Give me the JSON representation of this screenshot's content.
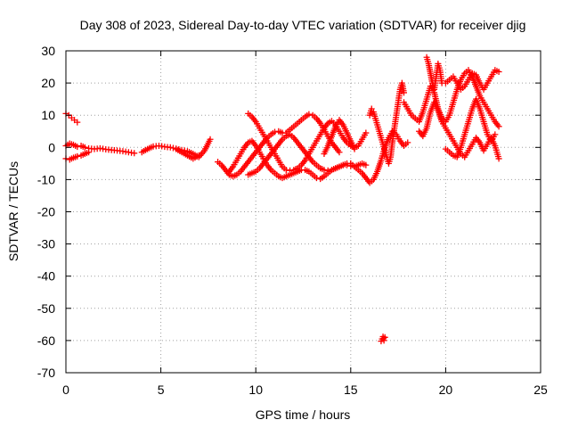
{
  "chart_data": {
    "type": "scatter",
    "title": "Day 308 of 2023, Sidereal Day-to-day VTEC variation (SDTVAR) for receiver djig",
    "xlabel": "GPS time / hours",
    "ylabel": "SDTVAR / TECUs",
    "xlim": [
      0,
      25
    ],
    "ylim": [
      -70,
      30
    ],
    "xticks": [
      0,
      5,
      10,
      15,
      20,
      25
    ],
    "yticks": [
      -70,
      -60,
      -50,
      -40,
      -30,
      -20,
      -10,
      0,
      10,
      20,
      30
    ],
    "xtick_labels": [
      "0",
      "5",
      "10",
      "15",
      "20",
      "25"
    ],
    "ytick_labels": [
      "-70",
      "-60",
      "-50",
      "-40",
      "-30",
      "-20",
      "-10",
      "0",
      "10",
      "20",
      "30"
    ],
    "grid": true,
    "marker": "+",
    "color": "#ff0000",
    "series": [
      {
        "name": "s1",
        "x": [
          0.0,
          0.15,
          0.3,
          0.45,
          0.6
        ],
        "y": [
          10.5,
          10.0,
          9.2,
          8.5,
          7.8
        ]
      },
      {
        "name": "s2",
        "x": [
          0.0,
          0.2,
          0.4,
          0.6,
          0.8,
          1.0,
          1.2,
          1.5,
          1.8,
          2.1,
          2.4,
          2.7,
          3.0,
          3.3,
          3.6
        ],
        "y": [
          0.5,
          1.2,
          0.8,
          0.2,
          0.5,
          0.0,
          -0.3,
          -0.5,
          -0.3,
          -0.6,
          -0.8,
          -1.0,
          -1.2,
          -1.5,
          -1.8
        ]
      },
      {
        "name": "s3",
        "x": [
          0.0,
          0.2,
          0.4,
          0.6,
          0.8,
          1.0,
          1.2
        ],
        "y": [
          -3.5,
          -3.8,
          -3.2,
          -2.8,
          -2.5,
          -2.0,
          -1.5
        ]
      },
      {
        "name": "s4",
        "x": [
          4.0,
          4.3,
          4.6,
          4.9,
          5.2,
          5.5,
          5.8,
          6.1,
          6.4,
          6.7,
          7.0,
          7.3,
          7.6
        ],
        "y": [
          -1.5,
          -0.5,
          0.3,
          0.5,
          0.2,
          0.0,
          -0.4,
          -0.8,
          -1.2,
          -2.0,
          -3.0,
          -1.0,
          2.5
        ]
      },
      {
        "name": "s5",
        "x": [
          5.8,
          6.1,
          6.4,
          6.7,
          7.0
        ],
        "y": [
          -0.5,
          -1.5,
          -2.5,
          -3.5,
          -2.5
        ]
      },
      {
        "name": "s6",
        "x": [
          8.0,
          8.2,
          8.4,
          8.6,
          8.8,
          9.0,
          9.2,
          9.4,
          9.6,
          9.8,
          10.0,
          10.2,
          10.4,
          10.6,
          10.8,
          11.0,
          11.2,
          11.4,
          11.6,
          11.8,
          12.0,
          12.2,
          12.4,
          12.6,
          12.8,
          13.0,
          13.2,
          13.4,
          13.6,
          13.8,
          14.0,
          14.2,
          14.4
        ],
        "y": [
          -4.5,
          -5.5,
          -7.0,
          -8.5,
          -9.0,
          -8.5,
          -7.5,
          -6.0,
          -4.5,
          -3.0,
          -1.5,
          0.0,
          1.5,
          3.0,
          4.0,
          4.8,
          5.0,
          4.5,
          4.5,
          5.5,
          6.5,
          7.5,
          8.5,
          9.5,
          10.3,
          10.0,
          9.0,
          7.5,
          5.5,
          3.5,
          1.5,
          0.0,
          -1.5
        ]
      },
      {
        "name": "s7",
        "x": [
          8.6,
          8.8,
          9.0,
          9.2,
          9.4,
          9.6,
          9.8,
          10.0,
          10.2,
          10.4,
          10.6,
          10.8,
          11.0,
          11.2,
          11.4,
          11.6,
          11.8,
          12.0,
          12.2,
          12.4,
          12.6,
          12.8,
          13.0,
          13.2,
          13.4,
          13.6,
          13.8,
          14.0,
          14.2,
          14.4,
          14.6,
          14.8,
          15.0,
          15.2,
          15.4,
          15.6,
          15.8
        ],
        "y": [
          -7.5,
          -6.0,
          -4.0,
          -2.0,
          0.0,
          1.5,
          2.0,
          0.5,
          -1.5,
          -3.5,
          -5.5,
          -7.0,
          -8.0,
          -9.0,
          -9.5,
          -9.0,
          -8.5,
          -8.0,
          -7.5,
          -7.0,
          -7.0,
          -7.5,
          -8.5,
          -9.5,
          -9.8,
          -9.0,
          -8.0,
          -7.0,
          -6.5,
          -6.0,
          -5.5,
          -5.5,
          -5.8,
          -6.0,
          -5.5,
          -5.0,
          -5.5
        ]
      },
      {
        "name": "s8",
        "x": [
          9.6,
          9.8,
          10.0,
          10.2,
          10.4,
          10.6,
          10.8,
          11.0,
          11.2,
          11.4,
          11.6,
          11.8,
          12.0,
          12.2,
          12.4,
          12.6,
          12.8,
          13.0,
          13.2,
          13.4,
          13.6,
          13.8,
          14.0,
          14.2,
          14.4,
          14.6,
          14.8,
          15.0,
          15.2,
          15.4,
          15.6,
          15.8
        ],
        "y": [
          10.5,
          9.5,
          8.0,
          6.0,
          4.0,
          2.0,
          0.0,
          -2.0,
          -4.0,
          -6.0,
          -7.0,
          -7.2,
          -7.0,
          -6.5,
          -5.5,
          -4.0,
          -2.0,
          0.0,
          2.0,
          4.0,
          6.0,
          7.5,
          8.2,
          7.0,
          5.0,
          3.0,
          1.5,
          0.5,
          0.0,
          0.5,
          2.5,
          4.5
        ]
      },
      {
        "name": "s9",
        "x": [
          9.6,
          9.8,
          10.0,
          10.2,
          10.4,
          10.6,
          10.8,
          11.0,
          11.2,
          11.4,
          11.6,
          11.8,
          12.0,
          12.2,
          12.4,
          12.6,
          12.8,
          13.0,
          13.2,
          13.4,
          13.6,
          13.8,
          14.0,
          14.2,
          14.4,
          14.6,
          14.8,
          15.0
        ],
        "y": [
          -8.5,
          -8.0,
          -7.5,
          -6.5,
          -5.0,
          -3.5,
          -2.0,
          -0.5,
          1.0,
          2.5,
          3.5,
          4.0,
          3.0,
          1.5,
          0.0,
          -1.5,
          -3.0,
          -4.5,
          -5.5,
          -6.5,
          -7.0,
          -7.2,
          -7.0,
          -6.5,
          -6.0,
          -5.5,
          -5.0,
          -5.0
        ]
      },
      {
        "name": "s10",
        "x": [
          13.6,
          13.8,
          14.0,
          14.2,
          14.4,
          14.6,
          14.8,
          15.0,
          15.2
        ],
        "y": [
          -2.0,
          0.5,
          3.5,
          6.5,
          8.5,
          7.0,
          4.5,
          2.0,
          -0.5
        ]
      },
      {
        "name": "s11",
        "x": [
          15.0,
          15.2,
          15.4,
          15.6,
          15.8,
          16.0,
          16.2,
          16.4,
          16.6,
          16.8,
          17.0,
          17.2,
          17.4,
          17.6,
          17.8,
          18.0
        ],
        "y": [
          -5.0,
          -6.0,
          -7.0,
          -8.0,
          -9.5,
          -11.0,
          -10.0,
          -7.5,
          -4.0,
          0.0,
          3.0,
          5.0,
          4.0,
          2.0,
          0.5,
          1.5
        ]
      },
      {
        "name": "s12",
        "x": [
          16.0,
          16.1,
          16.2,
          16.3,
          16.4,
          16.5,
          16.6,
          16.7,
          16.8,
          16.9,
          17.0,
          17.1,
          17.2,
          17.3,
          17.4,
          17.5,
          17.6,
          17.7,
          17.8
        ],
        "y": [
          10.0,
          12.0,
          11.0,
          9.0,
          7.0,
          5.0,
          3.0,
          1.0,
          -1.0,
          -3.0,
          -5.0,
          -3.0,
          2.0,
          6.0,
          10.0,
          14.0,
          18.0,
          20.0,
          17.0
        ]
      },
      {
        "name": "s13",
        "x": [
          16.6,
          16.65,
          16.7,
          16.75,
          16.8
        ],
        "y": [
          -60.2,
          -59.5,
          -58.8,
          -60.0,
          -59.0
        ]
      },
      {
        "name": "s14",
        "x": [
          17.8,
          18.0,
          18.2,
          18.4,
          18.6,
          18.8,
          19.0,
          19.2,
          19.4,
          19.6,
          19.8,
          20.0,
          20.2,
          20.4,
          20.6,
          20.8,
          21.0,
          21.2,
          21.4,
          21.6,
          21.8,
          22.0,
          22.2,
          22.4,
          22.6,
          22.8
        ],
        "y": [
          14.0,
          12.0,
          10.0,
          9.0,
          8.0,
          11.0,
          15.0,
          19.0,
          17.0,
          12.0,
          9.0,
          8.0,
          10.0,
          14.0,
          18.0,
          21.0,
          23.0,
          24.0,
          22.0,
          19.0,
          16.0,
          14.0,
          12.0,
          10.0,
          8.0,
          6.5
        ]
      },
      {
        "name": "s15",
        "x": [
          18.6,
          18.8,
          19.0,
          19.2,
          19.4,
          19.6,
          19.8,
          20.0,
          20.2,
          20.4,
          20.6,
          20.8,
          21.0,
          21.2,
          21.4,
          21.6,
          21.8,
          22.0,
          22.2,
          22.4,
          22.6,
          22.8
        ],
        "y": [
          5.0,
          3.5,
          6.0,
          11.0,
          14.0,
          11.5,
          8.0,
          6.0,
          4.0,
          2.0,
          0.0,
          -2.0,
          -3.0,
          -1.0,
          1.0,
          3.0,
          1.5,
          -1.0,
          1.0,
          3.0,
          0.5,
          -3.5
        ]
      },
      {
        "name": "s16",
        "x": [
          19.0,
          19.1,
          19.2,
          19.3,
          19.4,
          19.5,
          19.6,
          19.7,
          19.8
        ],
        "y": [
          28.0,
          26.0,
          23.0,
          20.0,
          18.0,
          22.0,
          26.0,
          24.0,
          20.0
        ]
      },
      {
        "name": "s17",
        "x": [
          20.0,
          20.2,
          20.4,
          20.6,
          20.8,
          21.0,
          21.2,
          21.4,
          21.6,
          21.8,
          22.0,
          22.2,
          22.4,
          22.6,
          22.8
        ],
        "y": [
          20.0,
          21.0,
          22.0,
          20.0,
          18.0,
          19.0,
          21.0,
          23.0,
          22.5,
          20.0,
          18.0,
          20.0,
          22.0,
          24.0,
          23.5
        ]
      },
      {
        "name": "s18",
        "x": [
          20.0,
          20.2,
          20.4,
          20.6,
          20.8,
          21.0,
          21.2,
          21.4,
          21.6,
          21.8,
          22.0,
          22.2,
          22.4,
          22.6
        ],
        "y": [
          -0.5,
          -1.5,
          -2.5,
          -3.0,
          0.0,
          4.0,
          8.0,
          12.0,
          15.0,
          12.0,
          8.0,
          4.0,
          2.0,
          4.0
        ]
      }
    ]
  }
}
